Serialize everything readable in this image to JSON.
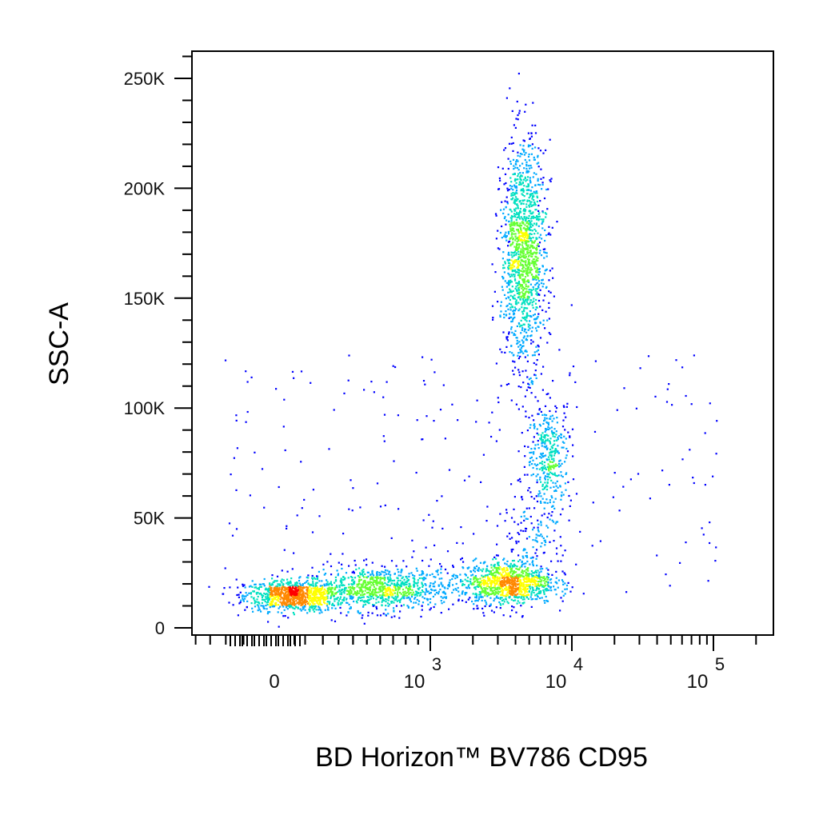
{
  "chart_data": {
    "type": "scatter",
    "style": "density-dot-plot",
    "title": "",
    "xlabel": "BD Horizon™ BV786 CD95",
    "ylabel": "SSC-A",
    "x_scale": "biexponential",
    "y_scale": "linear",
    "ylim": [
      0,
      262144
    ],
    "y_ticks": [
      {
        "value": 0,
        "label": "0"
      },
      {
        "value": 50000,
        "label": "50K"
      },
      {
        "value": 100000,
        "label": "100K"
      },
      {
        "value": 150000,
        "label": "150K"
      },
      {
        "value": 200000,
        "label": "200K"
      },
      {
        "value": 250000,
        "label": "250K"
      }
    ],
    "x_ticks": [
      {
        "value": 0,
        "label": "0"
      },
      {
        "value": 1000,
        "label": "10",
        "exponent": "3"
      },
      {
        "value": 10000,
        "label": "10",
        "exponent": "4"
      },
      {
        "value": 100000,
        "label": "10",
        "exponent": "5"
      }
    ],
    "color_scale": [
      "#0000ff",
      "#00aaff",
      "#00e0c0",
      "#66ff33",
      "#ffff00",
      "#ff8800",
      "#ff0000"
    ],
    "grid": false,
    "populations": [
      {
        "x_center": 40,
        "x_spread": 0.9,
        "y_center": 15000,
        "y_spread": 3500,
        "events": 900
      },
      {
        "x_center": 600,
        "x_spread": 1.8,
        "y_center": 18000,
        "y_spread": 5000,
        "events": 900
      },
      {
        "x_center": 3500,
        "x_spread": 1.45,
        "y_center": 21000,
        "y_spread": 5000,
        "events": 1000
      },
      {
        "x_center": 4500,
        "x_spread": 1.2,
        "y_center": 170000,
        "y_spread": 25000,
        "events": 1400
      },
      {
        "x_center": 6800,
        "x_spread": 1.2,
        "y_center": 80000,
        "y_spread": 12000,
        "events": 350
      },
      {
        "x_center": 5500,
        "x_spread": 1.3,
        "y_center": 45000,
        "y_spread": 12000,
        "events": 150
      }
    ]
  }
}
